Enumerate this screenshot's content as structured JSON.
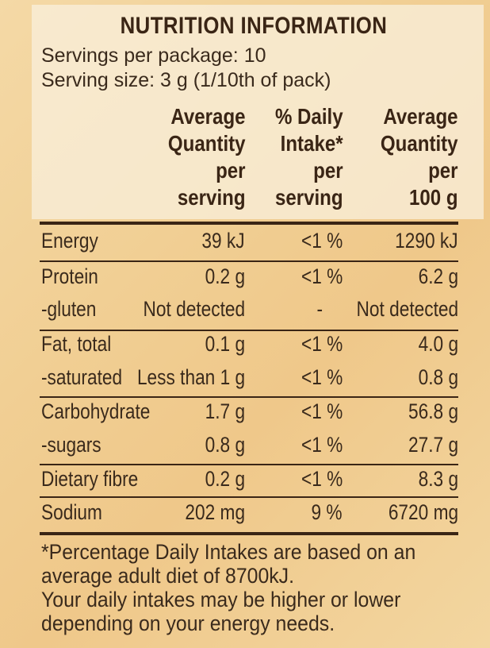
{
  "title": "NUTRITION INFORMATION",
  "servings_per_package": "Servings per package: 10",
  "serving_size": "Serving size: 3 g (1/10th of pack)",
  "columns": [
    [
      "Average",
      "Quantity",
      "per",
      "serving"
    ],
    [
      "% Daily",
      "Intake*",
      "per",
      "serving"
    ],
    [
      "Average",
      "Quantity",
      "per",
      "100 g"
    ]
  ],
  "rows": [
    {
      "name": "Energy",
      "per_serving": "39 kJ",
      "daily_intake": "<1 %",
      "per_100g": "1290 kJ"
    },
    {
      "name": "Protein",
      "per_serving": "0.2 g",
      "daily_intake": "<1 %",
      "per_100g": "6.2 g"
    },
    {
      "name": "-gluten",
      "per_serving": "Not detected",
      "daily_intake": "-",
      "per_100g": "Not detected"
    },
    {
      "name": "Fat, total",
      "per_serving": "0.1 g",
      "daily_intake": "<1 %",
      "per_100g": "4.0 g"
    },
    {
      "name": "-saturated",
      "per_serving": "Less than 1 g",
      "daily_intake": "<1 %",
      "per_100g": "0.8 g"
    },
    {
      "name": "Carbohydrate",
      "per_serving": "1.7 g",
      "daily_intake": "<1 %",
      "per_100g": "56.8 g"
    },
    {
      "name": "-sugars",
      "per_serving": "0.8 g",
      "daily_intake": "<1 %",
      "per_100g": "27.7 g"
    },
    {
      "name": "Dietary fibre",
      "per_serving": "0.2 g",
      "daily_intake": "<1 %",
      "per_100g": "8.3 g"
    },
    {
      "name": "Sodium",
      "per_serving": "202 mg",
      "daily_intake": "9 %",
      "per_100g": "6720 mg"
    }
  ],
  "footnote": [
    "*Percentage Daily Intakes are based on an",
    "average adult diet of 8700kJ.",
    "Your daily intakes may be higher or lower",
    "depending on your energy needs."
  ]
}
